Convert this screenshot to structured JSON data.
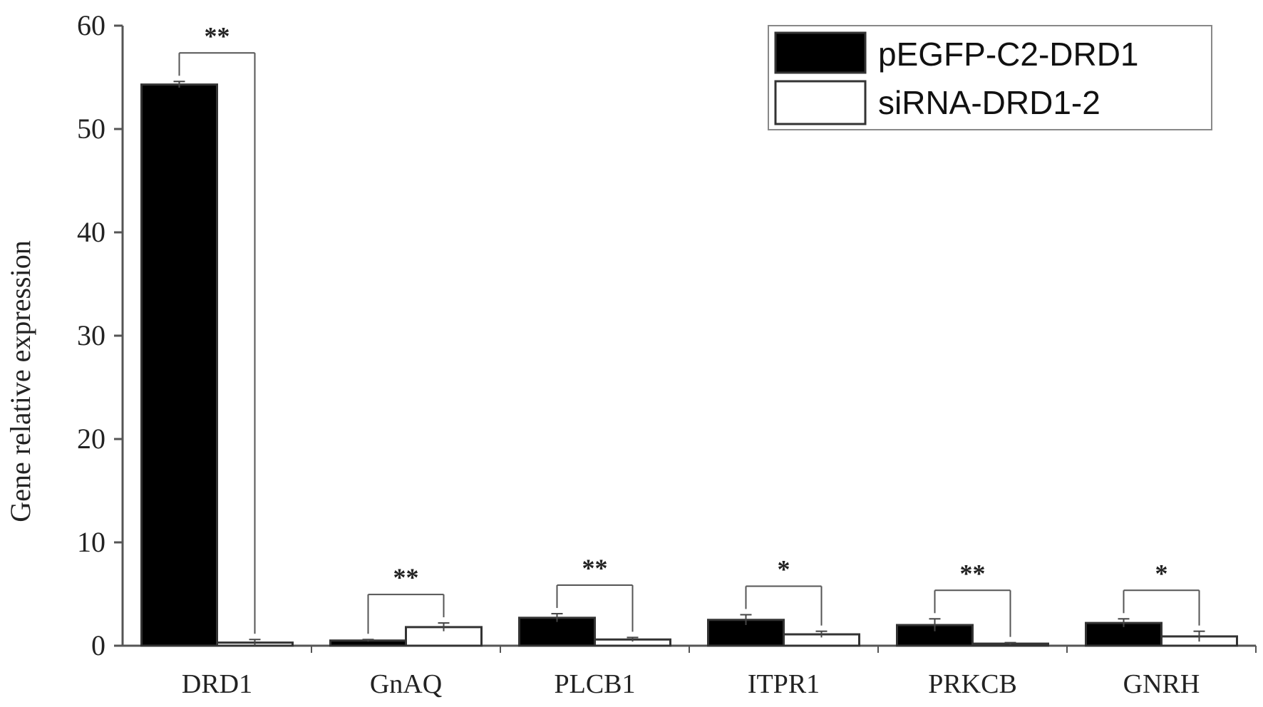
{
  "chart_data": {
    "type": "bar",
    "ylabel": "Gene relative expression",
    "xlabel": "",
    "ylim": [
      0,
      60
    ],
    "yticks": [
      0,
      10,
      20,
      30,
      40,
      50,
      60
    ],
    "categories": [
      "DRD1",
      "GnAQ",
      "PLCB1",
      "ITPR1",
      "PRKCB",
      "GNRH"
    ],
    "series": [
      {
        "name": "pEGFP-C2-DRD1",
        "color": "#000000",
        "values": [
          54.3,
          0.5,
          2.7,
          2.5,
          2.0,
          2.2
        ],
        "errors": [
          0.3,
          0.1,
          0.4,
          0.5,
          0.6,
          0.4
        ]
      },
      {
        "name": "siRNA-DRD1-2",
        "color": "#ffffff",
        "values": [
          0.3,
          1.8,
          0.6,
          1.1,
          0.2,
          0.9
        ],
        "errors": [
          0.3,
          0.4,
          0.2,
          0.3,
          0.1,
          0.5
        ]
      }
    ],
    "significance": [
      "**",
      "**",
      "**",
      "*",
      "**",
      "*"
    ],
    "legend_position": "top-right",
    "grid": false
  }
}
